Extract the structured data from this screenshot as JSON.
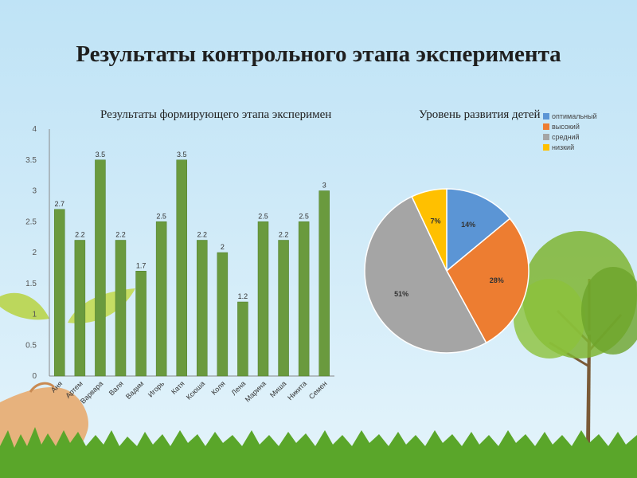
{
  "title": "Результаты контрольного этапа эксперимента",
  "colors": {
    "bar": "#6a9a3e",
    "grass": "#5aa62a",
    "tree": "#79b12f"
  },
  "chart_data": [
    {
      "type": "bar",
      "title": "Результаты формирующего этапа эксперимен",
      "categories": [
        "Аня",
        "Артем",
        "Варвара",
        "Валя",
        "Вадим",
        "Игорь",
        "Катя",
        "Ксюша",
        "Коля",
        "Лена",
        "Марина",
        "Миша",
        "Никита",
        "Семен"
      ],
      "values": [
        2.7,
        2.2,
        3.5,
        2.2,
        1.7,
        2.5,
        3.5,
        2.2,
        2,
        1.2,
        2.5,
        2.2,
        2.5,
        3
      ],
      "value_labels": [
        "2.7",
        "2.2",
        "3.5",
        "2.2",
        "1.7",
        "2.5",
        "3.5",
        "2.2",
        "2",
        "1.2",
        "2.5",
        "2.2",
        "2.5",
        "3"
      ],
      "yticks": [
        "0",
        "0.5",
        "1",
        "1.5",
        "2",
        "2.5",
        "3",
        "3.5",
        "4"
      ],
      "ylim": [
        0,
        4
      ],
      "color": "#6a9a3e"
    },
    {
      "type": "pie",
      "title": "Уровень развития детей",
      "legend_position": "top-right",
      "slices": [
        {
          "name": "оптимальный",
          "value": 14,
          "label": "14%",
          "color": "#5b95d5"
        },
        {
          "name": "высокий",
          "value": 28,
          "label": "28%",
          "color": "#ed7d31"
        },
        {
          "name": "средний",
          "value": 51,
          "label": "51%",
          "color": "#a5a5a5"
        },
        {
          "name": "низкий",
          "value": 7,
          "label": "7%",
          "color": "#ffc000"
        }
      ]
    }
  ]
}
